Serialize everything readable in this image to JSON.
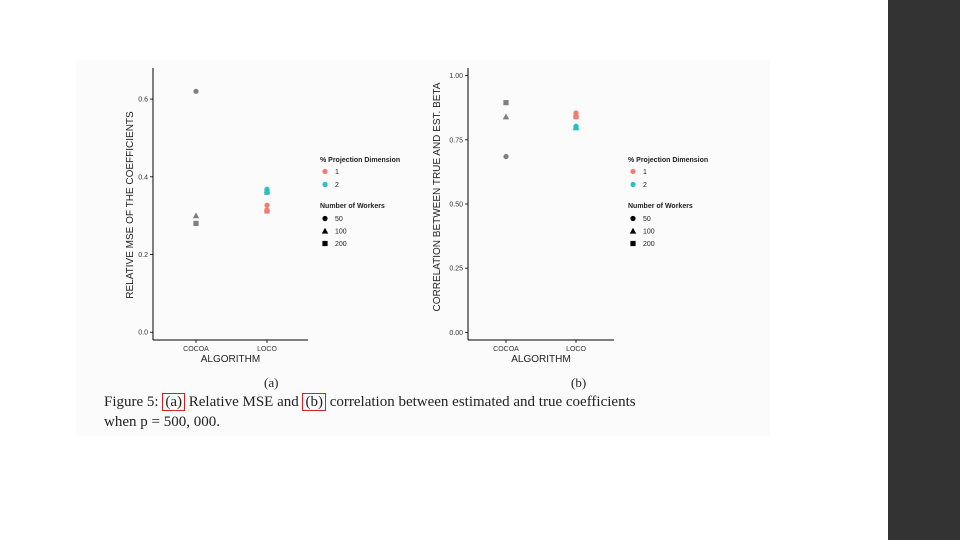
{
  "caption": {
    "prefix": "Figure 5:",
    "ref_a": "(a)",
    "text_1": "Relative MSE and",
    "ref_b": "(b)",
    "text_2": "correlation between estimated and true coefficients",
    "line2": "when p = 500, 000."
  },
  "colors": {
    "cocoa_gray": "#7f7f7f",
    "dim1_red": "#f07c74",
    "dim2_cyan": "#2bbfc4",
    "sidebar": "#333333",
    "caption_box": "#cc2222"
  },
  "chart_data": [
    {
      "type": "scatter",
      "panel_label": "(a)",
      "xlabel": "ALGORITHM",
      "ylabel": "RELATIVE MSE OF THE COEFFICIENTS",
      "categories": [
        "COCOA",
        "LOCO"
      ],
      "ylim": [
        -0.02,
        0.68
      ],
      "yticks": [
        {
          "value": 0.0,
          "label": "0.0"
        },
        {
          "value": 0.2,
          "label": "0.2"
        },
        {
          "value": 0.4,
          "label": "0.4"
        },
        {
          "value": 0.6,
          "label": "0.6"
        }
      ],
      "grid": false,
      "legend_position": "right",
      "legend": {
        "color_title": "% Projection Dimension",
        "color_entries": [
          {
            "label": "1",
            "color": "#f07c74"
          },
          {
            "label": "2",
            "color": "#2bbfc4"
          }
        ],
        "shape_title": "Number of Workers",
        "shape_entries": [
          {
            "label": "50",
            "shape": "circle"
          },
          {
            "label": "100",
            "shape": "triangle"
          },
          {
            "label": "200",
            "shape": "square"
          }
        ]
      },
      "points": [
        {
          "x": "COCOA",
          "y": 0.62,
          "workers": "50",
          "shape": "circle",
          "color": "#7f7f7f"
        },
        {
          "x": "COCOA",
          "y": 0.3,
          "workers": "100",
          "shape": "triangle",
          "color": "#7f7f7f"
        },
        {
          "x": "COCOA",
          "y": 0.28,
          "workers": "200",
          "shape": "square",
          "color": "#7f7f7f"
        },
        {
          "x": "LOCO",
          "y": 0.368,
          "dim": "2",
          "workers": "50",
          "shape": "circle",
          "color": "#2bbfc4"
        },
        {
          "x": "LOCO",
          "y": 0.365,
          "dim": "2",
          "workers": "100",
          "shape": "triangle",
          "color": "#2bbfc4"
        },
        {
          "x": "LOCO",
          "y": 0.36,
          "dim": "2",
          "workers": "200",
          "shape": "square",
          "color": "#2bbfc4"
        },
        {
          "x": "LOCO",
          "y": 0.327,
          "dim": "1",
          "workers": "50",
          "shape": "circle",
          "color": "#f07c74"
        },
        {
          "x": "LOCO",
          "y": 0.318,
          "dim": "1",
          "workers": "100",
          "shape": "triangle",
          "color": "#f07c74"
        },
        {
          "x": "LOCO",
          "y": 0.312,
          "dim": "1",
          "workers": "200",
          "shape": "square",
          "color": "#f07c74"
        }
      ]
    },
    {
      "type": "scatter",
      "panel_label": "(b)",
      "xlabel": "ALGORITHM",
      "ylabel": "CORRELATION BETWEEN TRUE AND EST. BETA",
      "categories": [
        "COCOA",
        "LOCO"
      ],
      "ylim": [
        -0.03,
        1.03
      ],
      "yticks": [
        {
          "value": 0.0,
          "label": "0.00"
        },
        {
          "value": 0.25,
          "label": "0.25"
        },
        {
          "value": 0.5,
          "label": "0.50"
        },
        {
          "value": 0.75,
          "label": "0.75"
        },
        {
          "value": 1.0,
          "label": "1.00"
        }
      ],
      "grid": false,
      "legend_position": "right",
      "legend": {
        "color_title": "% Projection Dimension",
        "color_entries": [
          {
            "label": "1",
            "color": "#f07c74"
          },
          {
            "label": "2",
            "color": "#2bbfc4"
          }
        ],
        "shape_title": "Number of Workers",
        "shape_entries": [
          {
            "label": "50",
            "shape": "circle"
          },
          {
            "label": "100",
            "shape": "triangle"
          },
          {
            "label": "200",
            "shape": "square"
          }
        ]
      },
      "points": [
        {
          "x": "COCOA",
          "y": 0.895,
          "workers": "200",
          "shape": "square",
          "color": "#7f7f7f"
        },
        {
          "x": "COCOA",
          "y": 0.84,
          "workers": "100",
          "shape": "triangle",
          "color": "#7f7f7f"
        },
        {
          "x": "COCOA",
          "y": 0.685,
          "workers": "50",
          "shape": "circle",
          "color": "#7f7f7f"
        },
        {
          "x": "LOCO",
          "y": 0.855,
          "dim": "1",
          "workers": "50",
          "shape": "circle",
          "color": "#f07c74"
        },
        {
          "x": "LOCO",
          "y": 0.848,
          "dim": "1",
          "workers": "100",
          "shape": "triangle",
          "color": "#f07c74"
        },
        {
          "x": "LOCO",
          "y": 0.84,
          "dim": "1",
          "workers": "200",
          "shape": "square",
          "color": "#f07c74"
        },
        {
          "x": "LOCO",
          "y": 0.803,
          "dim": "2",
          "workers": "50",
          "shape": "circle",
          "color": "#2bbfc4"
        },
        {
          "x": "LOCO",
          "y": 0.8,
          "dim": "2",
          "workers": "100",
          "shape": "triangle",
          "color": "#2bbfc4"
        },
        {
          "x": "LOCO",
          "y": 0.797,
          "dim": "2",
          "workers": "200",
          "shape": "square",
          "color": "#2bbfc4"
        }
      ]
    }
  ]
}
